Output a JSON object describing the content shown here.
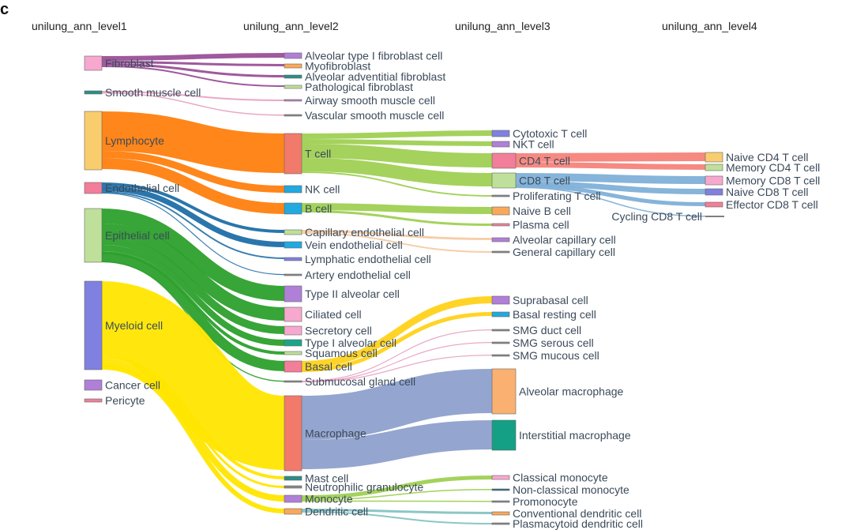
{
  "panel_letter": "c",
  "level_headers": [
    "unilung_ann_level1",
    "unilung_ann_level2",
    "unilung_ann_level3",
    "unilung_ann_level4"
  ],
  "colors": {
    "fibroblast": "#f7a8cf",
    "fibroblast_flow": "#8e3c8c",
    "smooth": "#2a8f86",
    "lymphocyte": "#f9cd6e",
    "lymph_flow": "#ff7f0e",
    "endothelial": "#f27e99",
    "endo_flow": "#1f6fa8",
    "epithelial": "#bfe09a",
    "epi_flow": "#2ca02c",
    "myeloid": "#8080e0",
    "myeloid_flow": "#ffe600",
    "cancer": "#b07fd8",
    "pericyte": "#e8849a",
    "tcell": "#f27a6a",
    "tcell_flow": "#9acd4a",
    "cd8_flow": "#7fb0d8",
    "cd4_flow": "#f5837a",
    "bcell": "#21a9e0",
    "bcell_flow": "#9acd4a",
    "basal": "#f27e99",
    "basal_flow": "#ffd21a",
    "macrophage": "#f27a6a",
    "macro_flow": "#8ea0cc",
    "monocyte_flow": "#9acd4a",
    "pink_line": "#e7a0c0",
    "gray_line": "#b0b0b0"
  },
  "level1": [
    {
      "id": "fib",
      "label": "Fibroblast"
    },
    {
      "id": "smc",
      "label": "Smooth muscle cell"
    },
    {
      "id": "lym",
      "label": "Lymphocyte"
    },
    {
      "id": "endo",
      "label": "Endothelial cell"
    },
    {
      "id": "epi",
      "label": "Epithelial cell"
    },
    {
      "id": "mye",
      "label": "Myeloid cell"
    },
    {
      "id": "can",
      "label": "Cancer cell"
    },
    {
      "id": "per",
      "label": "Pericyte"
    }
  ],
  "level2": [
    {
      "id": "at1f",
      "label": "Alveolar type I fibroblast cell"
    },
    {
      "id": "myof",
      "label": "Myofibroblast"
    },
    {
      "id": "aaf",
      "label": "Alveolar adventitial fibroblast"
    },
    {
      "id": "pathf",
      "label": "Pathological fibroblast"
    },
    {
      "id": "asm",
      "label": "Airway smooth muscle cell"
    },
    {
      "id": "vsm",
      "label": "Vascular smooth muscle cell"
    },
    {
      "id": "tcell",
      "label": "T cell"
    },
    {
      "id": "nk",
      "label": "NK cell"
    },
    {
      "id": "bcell",
      "label": "B cell"
    },
    {
      "id": "cap",
      "label": "Capillary endothelial cell"
    },
    {
      "id": "vein",
      "label": "Vein endothelial cell"
    },
    {
      "id": "lymph",
      "label": "Lymphatic endothelial cell"
    },
    {
      "id": "artery",
      "label": "Artery endothelial cell"
    },
    {
      "id": "at2",
      "label": "Type II alveolar cell"
    },
    {
      "id": "cil",
      "label": "Ciliated cell"
    },
    {
      "id": "sec",
      "label": "Secretory cell"
    },
    {
      "id": "at1",
      "label": "Type I alveolar cell"
    },
    {
      "id": "squ",
      "label": "Squamous cell"
    },
    {
      "id": "bas",
      "label": "Basal cell"
    },
    {
      "id": "smg",
      "label": "Submucosal gland cell"
    },
    {
      "id": "mac",
      "label": "Macrophage"
    },
    {
      "id": "mast",
      "label": "Mast cell"
    },
    {
      "id": "neu",
      "label": "Neutrophilic granulocyte"
    },
    {
      "id": "mono",
      "label": "Monocyte"
    },
    {
      "id": "dc",
      "label": "Dendritic cell"
    }
  ],
  "level3": [
    {
      "id": "cyt",
      "label": "Cytotoxic T cell"
    },
    {
      "id": "nkt",
      "label": "NKT cell"
    },
    {
      "id": "cd4",
      "label": "CD4 T cell"
    },
    {
      "id": "cd8",
      "label": "CD8 T cell"
    },
    {
      "id": "prolif",
      "label": "Proliferating T cell"
    },
    {
      "id": "naiveb",
      "label": "Naive B cell"
    },
    {
      "id": "plasma",
      "label": "Plasma cell"
    },
    {
      "id": "acap",
      "label": "Alveolar capillary cell"
    },
    {
      "id": "gcap",
      "label": "General capillary cell"
    },
    {
      "id": "supra",
      "label": "Suprabasal cell"
    },
    {
      "id": "basr",
      "label": "Basal resting cell"
    },
    {
      "id": "smgd",
      "label": "SMG duct cell"
    },
    {
      "id": "smgs",
      "label": "SMG serous cell"
    },
    {
      "id": "smgm",
      "label": "SMG mucous cell"
    },
    {
      "id": "amac",
      "label": "Alveolar macrophage"
    },
    {
      "id": "imac",
      "label": "Interstitial macrophage"
    },
    {
      "id": "cmono",
      "label": "Classical monocyte"
    },
    {
      "id": "ncmono",
      "label": "Non-classical monocyte"
    },
    {
      "id": "promono",
      "label": "Promonocyte"
    },
    {
      "id": "cdc",
      "label": "Conventional dendritic cell"
    },
    {
      "id": "pdc",
      "label": "Plasmacytoid dendritic cell"
    }
  ],
  "level4": [
    {
      "id": "n4",
      "label": "Naive CD4 T cell"
    },
    {
      "id": "m4",
      "label": "Memory CD4 T cell"
    },
    {
      "id": "m8",
      "label": "Memory CD8 T cell"
    },
    {
      "id": "n8",
      "label": "Naive CD8 T cell"
    },
    {
      "id": "e8",
      "label": "Effector CD8 T cell"
    },
    {
      "id": "c8",
      "label": "Cycling CD8 T cell"
    }
  ]
}
